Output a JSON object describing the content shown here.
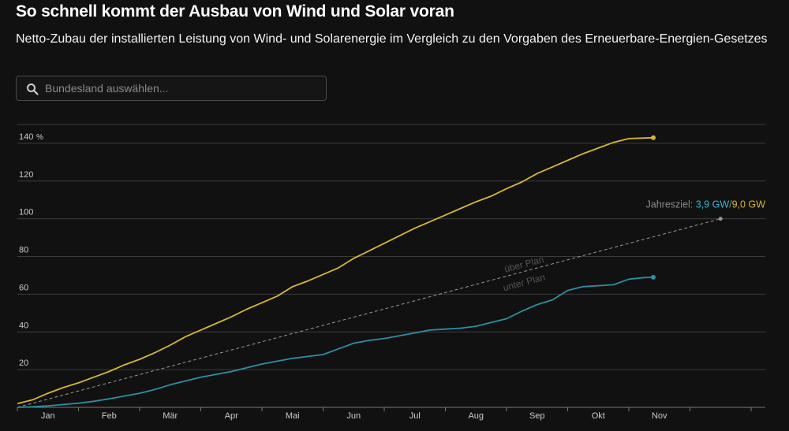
{
  "header": {
    "title": "So schnell kommt der Ausbau von Wind und Solar voran",
    "subtitle": "Netto-Zubau der installierten Leistung von Wind- und Solarenergie im Vergleich zu den Vorgaben des Erneuerbare-Energien-Gesetzes"
  },
  "search": {
    "placeholder": "Bundesland auswählen..."
  },
  "colors": {
    "background": "#111111",
    "solar": "#d6b733",
    "wind": "#2e8ea3",
    "plan": "#999999",
    "grid": "#3c3c3c",
    "text": "#cccccc"
  },
  "chart_data": {
    "type": "line",
    "x_unit": "month",
    "categories": [
      "Jan",
      "Feb",
      "Mär",
      "Apr",
      "Mai",
      "Jun",
      "Jul",
      "Aug",
      "Sep",
      "Okt",
      "Nov"
    ],
    "ylim": [
      0,
      150
    ],
    "yticks": [
      20,
      40,
      60,
      80,
      100,
      120,
      140
    ],
    "ytick_labels": [
      "20",
      "40",
      "60",
      "80",
      "100",
      "120",
      "140"
    ],
    "y_unit_marker": "%",
    "grid": true,
    "series": [
      {
        "key": "solar",
        "color": "#d6b733",
        "x": [
          0,
          0.25,
          0.5,
          0.75,
          1.0,
          1.25,
          1.5,
          1.75,
          2.0,
          2.25,
          2.5,
          2.75,
          3.0,
          3.25,
          3.5,
          3.75,
          4.0,
          4.25,
          4.5,
          4.75,
          5.0,
          5.25,
          5.5,
          5.75,
          6.0,
          6.25,
          6.5,
          6.75,
          7.0,
          7.25,
          7.5,
          7.75,
          8.0,
          8.25,
          8.5,
          8.75,
          9.0,
          9.25,
          9.5,
          9.75,
          10.0,
          10.25,
          10.4
        ],
        "values": [
          2,
          4,
          7.5,
          10.5,
          13,
          16,
          19,
          22.5,
          25.5,
          29,
          33,
          37.5,
          41,
          44.5,
          48,
          52,
          55.5,
          59,
          64,
          67,
          70.5,
          74,
          79,
          83,
          87,
          91,
          95,
          98.5,
          102,
          105.5,
          109,
          112,
          116,
          119.5,
          124,
          127.5,
          131,
          134.5,
          137.5,
          140.5,
          142.5,
          142.8,
          143
        ]
      },
      {
        "key": "wind",
        "color": "#2e8ea3",
        "x": [
          0,
          0.25,
          0.5,
          0.75,
          1.0,
          1.25,
          1.5,
          1.75,
          2.0,
          2.25,
          2.5,
          2.75,
          3.0,
          3.25,
          3.5,
          3.75,
          4.0,
          4.25,
          4.5,
          4.75,
          5.0,
          5.25,
          5.5,
          5.75,
          6.0,
          6.25,
          6.5,
          6.75,
          7.0,
          7.25,
          7.5,
          7.75,
          8.0,
          8.25,
          8.5,
          8.75,
          9.0,
          9.25,
          9.5,
          9.75,
          10.0,
          10.25,
          10.4
        ],
        "values": [
          0,
          0.3,
          0.8,
          1.5,
          2.2,
          3.2,
          4.5,
          6,
          7.5,
          9.5,
          12,
          14,
          16,
          17.5,
          19,
          21,
          23,
          24.5,
          26,
          27,
          28,
          31,
          34,
          35.5,
          36.5,
          38,
          39.5,
          41,
          41.5,
          42,
          43,
          45,
          47,
          51,
          54.5,
          57,
          62,
          64,
          64.5,
          65,
          68,
          68.8,
          69
        ]
      }
    ],
    "plan_line": {
      "label_above": "über Plan",
      "label_below": "unter Plan",
      "x": [
        0,
        11.5
      ],
      "values": [
        0,
        100
      ]
    },
    "annotation": {
      "prefix": "Jahresziel: ",
      "wind_value": "3,9 GW",
      "separator": "/",
      "solar_value": "9,0 GW"
    }
  }
}
